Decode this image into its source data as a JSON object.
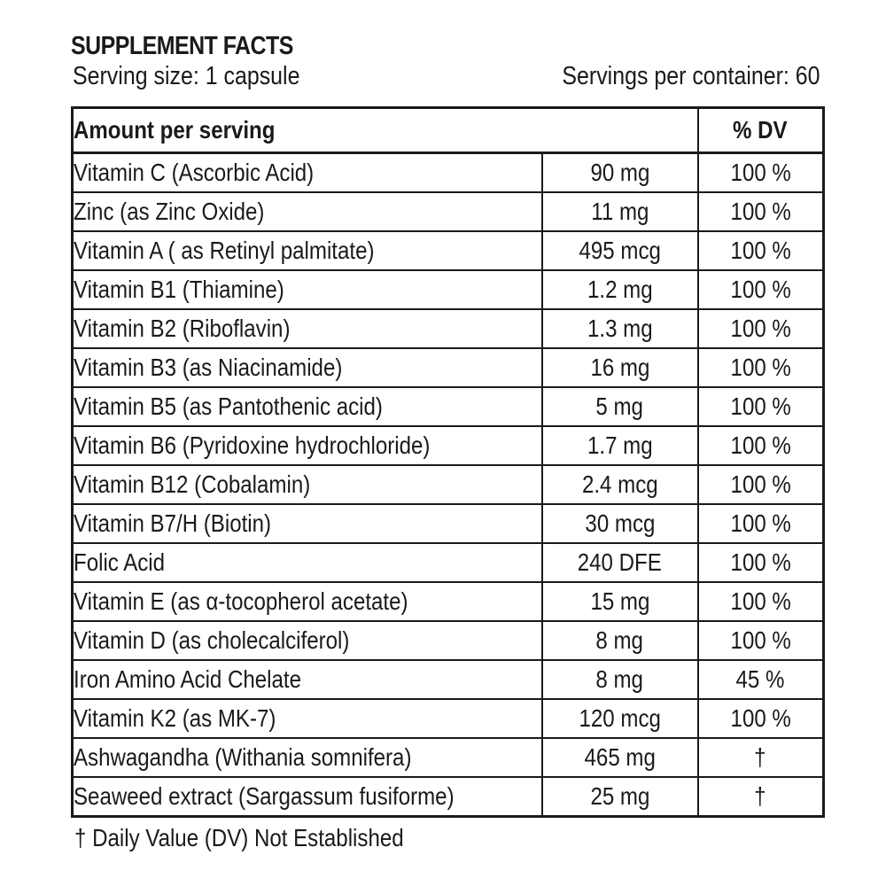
{
  "label": {
    "title": "SUPPLEMENT FACTS",
    "serving_size": "Serving size: 1 capsule",
    "servings_per_container": "Servings per container: 60"
  },
  "table": {
    "header": {
      "amount_per_serving": "Amount per serving",
      "dv": "% DV"
    },
    "rows": [
      {
        "name": "Vitamin C (Ascorbic Acid)",
        "amount": "90 mg",
        "dv": "100 %"
      },
      {
        "name": "Zinc (as Zinc Oxide)",
        "amount": "11 mg",
        "dv": "100 %"
      },
      {
        "name": "Vitamin A ( as Retinyl palmitate)",
        "amount": "495 mcg",
        "dv": "100 %"
      },
      {
        "name": "Vitamin B1 (Thiamine)",
        "amount": "1.2 mg",
        "dv": "100 %"
      },
      {
        "name": "Vitamin B2 (Riboflavin)",
        "amount": "1.3 mg",
        "dv": "100 %"
      },
      {
        "name": "Vitamin B3 (as Niacinamide)",
        "amount": "16 mg",
        "dv": "100 %"
      },
      {
        "name": "Vitamin B5 (as Pantothenic acid)",
        "amount": "5 mg",
        "dv": "100 %"
      },
      {
        "name": "Vitamin B6 (Pyridoxine hydrochloride)",
        "amount": "1.7 mg",
        "dv": "100 %"
      },
      {
        "name": "Vitamin B12 (Cobalamin)",
        "amount": "2.4 mcg",
        "dv": "100 %"
      },
      {
        "name": "Vitamin B7/H (Biotin)",
        "amount": "30 mcg",
        "dv": "100 %"
      },
      {
        "name": "Folic Acid",
        "amount": "240 DFE",
        "dv": "100 %"
      },
      {
        "name": "Vitamin E (as α-tocopherol acetate)",
        "amount": "15 mg",
        "dv": "100 %"
      },
      {
        "name": "Vitamin D (as cholecalciferol)",
        "amount": "8 mg",
        "dv": "100 %"
      },
      {
        "name": "Iron Amino Acid Chelate",
        "amount": "8 mg",
        "dv": "45 %"
      },
      {
        "name": "Vitamin K2 (as MK-7)",
        "amount": "120 mcg",
        "dv": "100 %"
      },
      {
        "name": "Ashwagandha (Withania somnifera)",
        "amount": "465 mg",
        "dv": "†"
      },
      {
        "name": "Seaweed extract (Sargassum fusiforme)",
        "amount": "25 mg",
        "dv": "†"
      }
    ]
  },
  "footnote": "† Daily Value (DV) Not Established"
}
